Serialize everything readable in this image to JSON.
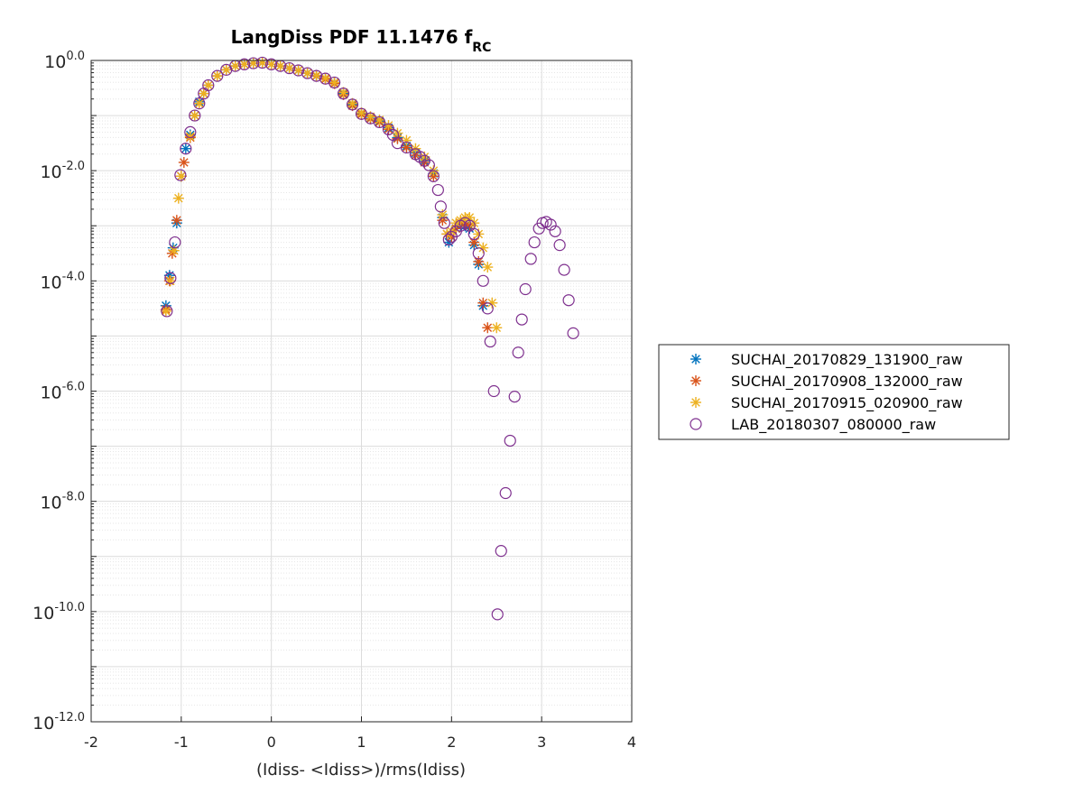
{
  "chart_data": {
    "type": "scatter",
    "title": "LangDiss PDF 11.1476 f",
    "title_subscript": "RC",
    "xlabel": "(Idiss- <Idiss>)/rms(Idiss)",
    "ylabel": "",
    "xlim": [
      -2,
      4
    ],
    "ylim_log10": [
      -12,
      0
    ],
    "yscale": "log",
    "x_ticks": [
      "-2",
      "-1",
      "0",
      "1",
      "2",
      "3",
      "4"
    ],
    "y_ticks": [
      {
        "base": "10",
        "exp": "-12.0"
      },
      {
        "base": "10",
        "exp": "-10.0"
      },
      {
        "base": "10",
        "exp": "-8.0"
      },
      {
        "base": "10",
        "exp": "-6.0"
      },
      {
        "base": "10",
        "exp": "-4.0"
      },
      {
        "base": "10",
        "exp": "-2.0"
      },
      {
        "base": "10",
        "exp": "0.0"
      }
    ],
    "grid": true,
    "minor_grid": true,
    "legend_position": "right, outside plot",
    "series": [
      {
        "name": "SUCHAI_20170829_131900_raw",
        "marker": "asterisk",
        "color": "#0072BD",
        "points": [
          [
            -1.17,
            -4.45
          ],
          [
            -1.13,
            -3.9
          ],
          [
            -1.09,
            -3.4
          ],
          [
            -1.05,
            -2.95
          ],
          [
            -1.0,
            -2.1
          ],
          [
            -0.95,
            -1.6
          ],
          [
            -0.9,
            -1.35
          ],
          [
            -0.85,
            -1.0
          ],
          [
            -0.8,
            -0.75
          ],
          [
            -0.75,
            -0.6
          ],
          [
            -0.7,
            -0.45
          ],
          [
            -0.6,
            -0.28
          ],
          [
            -0.5,
            -0.17
          ],
          [
            -0.4,
            -0.1
          ],
          [
            -0.3,
            -0.07
          ],
          [
            -0.2,
            -0.05
          ],
          [
            -0.1,
            -0.04
          ],
          [
            0.0,
            -0.07
          ],
          [
            0.1,
            -0.1
          ],
          [
            0.2,
            -0.14
          ],
          [
            0.3,
            -0.18
          ],
          [
            0.4,
            -0.23
          ],
          [
            0.5,
            -0.28
          ],
          [
            0.6,
            -0.33
          ],
          [
            0.7,
            -0.4
          ],
          [
            0.8,
            -0.6
          ],
          [
            0.9,
            -0.8
          ],
          [
            1.0,
            -0.97
          ],
          [
            1.1,
            -1.05
          ],
          [
            1.2,
            -1.1
          ],
          [
            1.3,
            -1.22
          ],
          [
            1.4,
            -1.4
          ],
          [
            1.5,
            -1.55
          ],
          [
            1.6,
            -1.68
          ],
          [
            1.7,
            -1.82
          ],
          [
            1.8,
            -2.05
          ],
          [
            1.9,
            -2.85
          ],
          [
            1.97,
            -3.3
          ],
          [
            2.05,
            -3.05
          ],
          [
            2.1,
            -3.0
          ],
          [
            2.15,
            -3.0
          ],
          [
            2.2,
            -3.05
          ],
          [
            2.25,
            -3.35
          ],
          [
            2.3,
            -3.7
          ],
          [
            2.35,
            -4.45
          ]
        ]
      },
      {
        "name": "SUCHAI_20170908_132000_raw",
        "marker": "asterisk",
        "color": "#D95319",
        "points": [
          [
            -1.17,
            -4.52
          ],
          [
            -1.13,
            -4.0
          ],
          [
            -1.1,
            -3.5
          ],
          [
            -1.05,
            -2.9
          ],
          [
            -1.0,
            -2.1
          ],
          [
            -0.97,
            -1.85
          ],
          [
            -0.9,
            -1.4
          ],
          [
            -0.85,
            -1.0
          ],
          [
            -0.8,
            -0.78
          ],
          [
            -0.75,
            -0.6
          ],
          [
            -0.7,
            -0.45
          ],
          [
            -0.6,
            -0.28
          ],
          [
            -0.5,
            -0.17
          ],
          [
            -0.4,
            -0.1
          ],
          [
            -0.3,
            -0.07
          ],
          [
            -0.2,
            -0.05
          ],
          [
            -0.1,
            -0.04
          ],
          [
            0.0,
            -0.07
          ],
          [
            0.1,
            -0.1
          ],
          [
            0.2,
            -0.14
          ],
          [
            0.3,
            -0.18
          ],
          [
            0.4,
            -0.23
          ],
          [
            0.5,
            -0.28
          ],
          [
            0.6,
            -0.34
          ],
          [
            0.7,
            -0.42
          ],
          [
            0.8,
            -0.62
          ],
          [
            0.9,
            -0.82
          ],
          [
            1.0,
            -0.98
          ],
          [
            1.1,
            -1.06
          ],
          [
            1.2,
            -1.12
          ],
          [
            1.3,
            -1.25
          ],
          [
            1.4,
            -1.42
          ],
          [
            1.5,
            -1.58
          ],
          [
            1.6,
            -1.72
          ],
          [
            1.7,
            -1.85
          ],
          [
            1.8,
            -2.1
          ],
          [
            1.9,
            -2.9
          ],
          [
            1.95,
            -3.15
          ],
          [
            2.0,
            -3.2
          ],
          [
            2.05,
            -3.05
          ],
          [
            2.1,
            -2.95
          ],
          [
            2.15,
            -2.95
          ],
          [
            2.2,
            -3.0
          ],
          [
            2.25,
            -3.3
          ],
          [
            2.3,
            -3.65
          ],
          [
            2.35,
            -4.4
          ],
          [
            2.4,
            -4.85
          ]
        ]
      },
      {
        "name": "SUCHAI_20170915_020900_raw",
        "marker": "asterisk",
        "color": "#EDB120",
        "points": [
          [
            -1.17,
            -4.55
          ],
          [
            -1.12,
            -4.0
          ],
          [
            -1.08,
            -3.45
          ],
          [
            -1.03,
            -2.5
          ],
          [
            -1.0,
            -2.1
          ],
          [
            -0.9,
            -1.38
          ],
          [
            -0.85,
            -1.0
          ],
          [
            -0.8,
            -0.78
          ],
          [
            -0.75,
            -0.6
          ],
          [
            -0.7,
            -0.45
          ],
          [
            -0.6,
            -0.28
          ],
          [
            -0.5,
            -0.17
          ],
          [
            -0.4,
            -0.1
          ],
          [
            -0.3,
            -0.07
          ],
          [
            -0.2,
            -0.05
          ],
          [
            -0.1,
            -0.04
          ],
          [
            0.0,
            -0.07
          ],
          [
            0.1,
            -0.1
          ],
          [
            0.2,
            -0.14
          ],
          [
            0.3,
            -0.18
          ],
          [
            0.4,
            -0.23
          ],
          [
            0.5,
            -0.27
          ],
          [
            0.6,
            -0.32
          ],
          [
            0.7,
            -0.4
          ],
          [
            0.8,
            -0.58
          ],
          [
            0.9,
            -0.78
          ],
          [
            1.0,
            -0.95
          ],
          [
            1.1,
            -1.02
          ],
          [
            1.2,
            -1.08
          ],
          [
            1.3,
            -1.18
          ],
          [
            1.4,
            -1.32
          ],
          [
            1.5,
            -1.45
          ],
          [
            1.6,
            -1.6
          ],
          [
            1.7,
            -1.75
          ],
          [
            1.8,
            -2.0
          ],
          [
            1.9,
            -2.8
          ],
          [
            1.95,
            -3.15
          ],
          [
            2.0,
            -3.1
          ],
          [
            2.05,
            -2.95
          ],
          [
            2.1,
            -2.9
          ],
          [
            2.15,
            -2.85
          ],
          [
            2.2,
            -2.85
          ],
          [
            2.25,
            -2.95
          ],
          [
            2.3,
            -3.15
          ],
          [
            2.35,
            -3.4
          ],
          [
            2.4,
            -3.75
          ],
          [
            2.45,
            -4.4
          ],
          [
            2.5,
            -4.85
          ]
        ]
      },
      {
        "name": "LAB_20180307_080000_raw",
        "marker": "circle",
        "color": "#7E2F8E",
        "points": [
          [
            -1.16,
            -4.55
          ],
          [
            -1.12,
            -3.95
          ],
          [
            -1.07,
            -3.3
          ],
          [
            -1.01,
            -2.08
          ],
          [
            -0.95,
            -1.6
          ],
          [
            -0.9,
            -1.3
          ],
          [
            -0.85,
            -1.0
          ],
          [
            -0.8,
            -0.78
          ],
          [
            -0.75,
            -0.6
          ],
          [
            -0.7,
            -0.45
          ],
          [
            -0.6,
            -0.28
          ],
          [
            -0.5,
            -0.17
          ],
          [
            -0.4,
            -0.1
          ],
          [
            -0.3,
            -0.07
          ],
          [
            -0.2,
            -0.05
          ],
          [
            -0.1,
            -0.04
          ],
          [
            0.0,
            -0.07
          ],
          [
            0.1,
            -0.1
          ],
          [
            0.2,
            -0.14
          ],
          [
            0.3,
            -0.18
          ],
          [
            0.4,
            -0.23
          ],
          [
            0.5,
            -0.28
          ],
          [
            0.6,
            -0.33
          ],
          [
            0.7,
            -0.4
          ],
          [
            0.8,
            -0.6
          ],
          [
            0.9,
            -0.8
          ],
          [
            1.0,
            -0.97
          ],
          [
            1.1,
            -1.05
          ],
          [
            1.2,
            -1.12
          ],
          [
            1.3,
            -1.25
          ],
          [
            1.35,
            -1.35
          ],
          [
            1.4,
            -1.5
          ],
          [
            1.5,
            -1.58
          ],
          [
            1.6,
            -1.7
          ],
          [
            1.65,
            -1.75
          ],
          [
            1.7,
            -1.82
          ],
          [
            1.75,
            -1.9
          ],
          [
            1.8,
            -2.1
          ],
          [
            1.85,
            -2.35
          ],
          [
            1.88,
            -2.65
          ],
          [
            1.92,
            -2.95
          ],
          [
            1.97,
            -3.25
          ],
          [
            2.0,
            -3.2
          ],
          [
            2.05,
            -3.1
          ],
          [
            2.1,
            -3.0
          ],
          [
            2.15,
            -2.95
          ],
          [
            2.2,
            -3.0
          ],
          [
            2.25,
            -3.15
          ],
          [
            2.3,
            -3.5
          ],
          [
            2.35,
            -4.0
          ],
          [
            2.4,
            -4.5
          ],
          [
            2.43,
            -5.1
          ],
          [
            2.47,
            -6.0
          ],
          [
            2.51,
            -10.05
          ],
          [
            2.55,
            -8.9
          ],
          [
            2.6,
            -7.85
          ],
          [
            2.65,
            -6.9
          ],
          [
            2.7,
            -6.1
          ],
          [
            2.74,
            -5.3
          ],
          [
            2.78,
            -4.7
          ],
          [
            2.82,
            -4.15
          ],
          [
            2.88,
            -3.6
          ],
          [
            2.92,
            -3.3
          ],
          [
            2.97,
            -3.05
          ],
          [
            3.01,
            -2.95
          ],
          [
            3.05,
            -2.93
          ],
          [
            3.1,
            -2.98
          ],
          [
            3.15,
            -3.1
          ],
          [
            3.2,
            -3.35
          ],
          [
            3.25,
            -3.8
          ],
          [
            3.3,
            -4.35
          ],
          [
            3.35,
            -4.95
          ]
        ]
      }
    ]
  }
}
